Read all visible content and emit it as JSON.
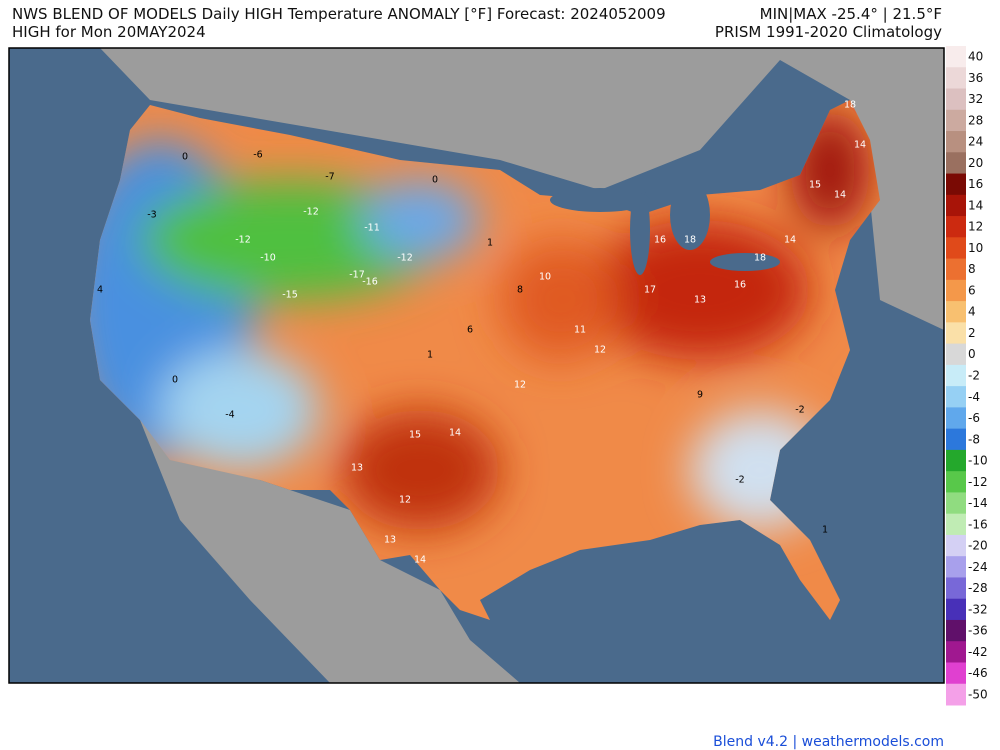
{
  "header": {
    "title": "NWS BLEND OF MODELS Daily HIGH Temperature ANOMALY [°F] Forecast: 2024052009",
    "subtitle": "HIGH for Mon 20MAY2024",
    "minmax": "MIN|MAX -25.4° | 21.5°F",
    "climatology": "PRISM 1991-2020 Climatology"
  },
  "footer": "Blend v4.2 | weathermodels.com",
  "colorbar": {
    "labels": [
      40,
      36,
      32,
      28,
      24,
      20,
      16,
      14,
      12,
      10,
      8,
      6,
      4,
      2,
      0,
      -2,
      -4,
      -6,
      -8,
      -10,
      -12,
      -14,
      -16,
      -20,
      -24,
      -28,
      -32,
      -36,
      -42,
      -46,
      -50
    ],
    "colors": [
      "#f8ecec",
      "#ecd8d8",
      "#dcc0c0",
      "#ccaaa0",
      "#b89080",
      "#9a7060",
      "#7a0a04",
      "#a81408",
      "#cc2a10",
      "#e04a1a",
      "#ec7030",
      "#f4984a",
      "#f8c070",
      "#fae0a8",
      "#d8d8d8",
      "#c8ecf8",
      "#96d0f4",
      "#60a8ec",
      "#2c78dc",
      "#24a82c",
      "#58c84a",
      "#90dc80",
      "#c0ecb4",
      "#d4d0f4",
      "#a8a0ec",
      "#7868d8",
      "#4830b8",
      "#60106a",
      "#a01890",
      "#e040d0",
      "#f4a0e8"
    ]
  },
  "map_values": [
    0,
    -3,
    -6,
    -7,
    -12,
    -12,
    -10,
    -17,
    -16,
    -15,
    -12,
    -11,
    0,
    1,
    8,
    10,
    6,
    1,
    12,
    15,
    14,
    13,
    12,
    13,
    14,
    16,
    18,
    17,
    13,
    16,
    18,
    14,
    15,
    18,
    14,
    14,
    12,
    9,
    -2,
    -2,
    0,
    -4,
    4,
    1,
    11
  ]
}
